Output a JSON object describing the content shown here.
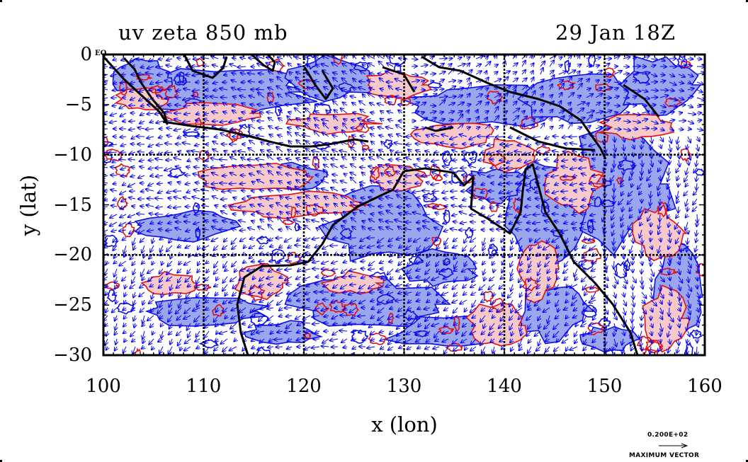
{
  "title_left": "uv zeta 850 mb",
  "title_right": "29 Jan 18Z",
  "corner_label": "EQ",
  "chart_data": {
    "type": "map",
    "xlabel": "x (lon)",
    "ylabel": "y (lat)",
    "xlim": [
      100,
      160
    ],
    "ylim": [
      -30,
      0
    ],
    "x_ticks": [
      "100",
      "110",
      "120",
      "130",
      "140",
      "150",
      "160"
    ],
    "y_ticks": [
      "0",
      "−5",
      "−10",
      "−15",
      "−20",
      "−25",
      "−30"
    ],
    "grid_lon": [
      110,
      120,
      130,
      140,
      150
    ],
    "grid_lat": [
      -10,
      -20
    ],
    "grid": true,
    "fields": [
      "uv",
      "zeta"
    ],
    "level": "850 mb",
    "time": "29 Jan 18Z",
    "colors": {
      "positive_fill": "#f7c9c9",
      "positive_contour": "#e01010",
      "negative_fill": "#9aa6ee",
      "negative_contour": "#1010e0",
      "wind_vectors": "#0000ff",
      "coastline": "#000000"
    }
  },
  "legend": {
    "max_vector_value": "0.200E+02",
    "max_vector_label": "MAXIMUM VECTOR"
  }
}
